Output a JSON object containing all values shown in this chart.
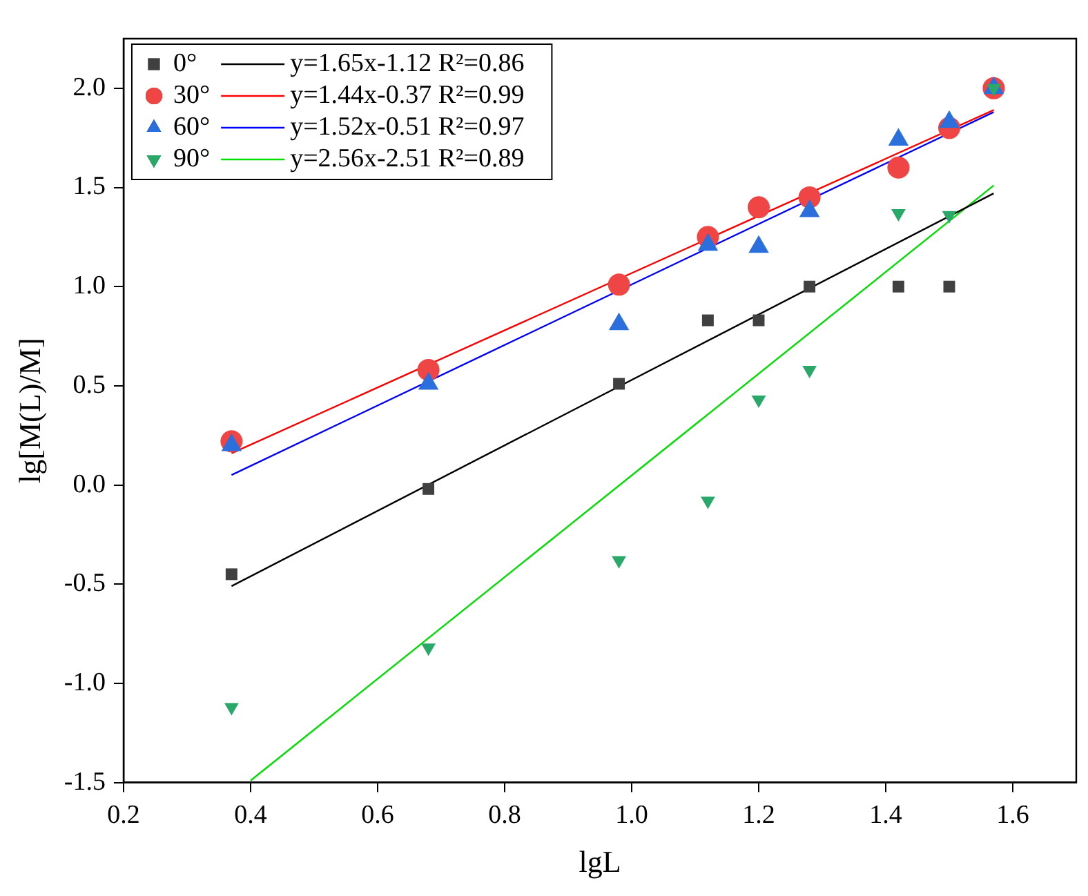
{
  "chart_data": {
    "type": "scatter",
    "xlabel": "lgL",
    "ylabel": "lg[M(L)/M]",
    "xlim": [
      0.2,
      1.7
    ],
    "xticks": [
      0.2,
      0.4,
      0.6,
      0.8,
      {
        "value": 1,
        "label": "1.0"
      },
      1.2,
      1.4,
      1.6
    ],
    "ylim": [
      -1.5,
      2.25
    ],
    "yticks": [
      -1.5,
      {
        "value": -1,
        "label": "-1.0"
      },
      -0.5,
      {
        "value": 0,
        "label": "0.0"
      },
      0.5,
      {
        "value": 1,
        "label": "1.0"
      },
      1.5,
      {
        "value": 2,
        "label": "2.0"
      }
    ],
    "grid": false,
    "legend": "top left",
    "series": [
      {
        "name": "0°",
        "marker": "square",
        "color": "#404040",
        "x": [
          0.37,
          0.68,
          0.98,
          1.12,
          1.2,
          1.28,
          1.42,
          1.5
        ],
        "values": [
          -0.45,
          -0.02,
          0.51,
          0.83,
          0.83,
          1.0,
          1.0,
          1.0
        ]
      },
      {
        "name": "30°",
        "marker": "circle",
        "color": "#f04545",
        "x": [
          0.37,
          0.68,
          0.98,
          1.12,
          1.2,
          1.28,
          1.42,
          1.5,
          1.57
        ],
        "values": [
          0.22,
          0.58,
          1.01,
          1.25,
          1.4,
          1.45,
          1.6,
          1.8,
          2.0
        ]
      },
      {
        "name": "60°",
        "marker": "triangle",
        "color": "#2a6fdb",
        "x": [
          0.37,
          0.68,
          0.98,
          1.12,
          1.2,
          1.28,
          1.42,
          1.5,
          1.57
        ],
        "values": [
          0.2,
          0.51,
          0.81,
          1.21,
          1.2,
          1.38,
          1.74,
          1.83,
          2.0
        ]
      },
      {
        "name": "90°",
        "marker": "triangle-down",
        "color": "#2aa86a",
        "x": [
          0.37,
          0.68,
          0.98,
          1.12,
          1.2,
          1.28,
          1.42,
          1.5,
          1.57
        ],
        "values": [
          -1.12,
          -0.82,
          -0.38,
          -0.08,
          0.43,
          0.58,
          1.37,
          1.36,
          2.0
        ]
      },
      {
        "name": "y=1.65x-1.12 R²=0.86",
        "type": "line",
        "marker": "none",
        "color": "#000000",
        "x": [
          0.37,
          1.57
        ],
        "values": [
          -0.51,
          1.47
        ]
      },
      {
        "name": "y=1.44x-0.37 R²=0.99",
        "type": "line",
        "marker": "none",
        "color": "#ff0000",
        "x": [
          0.37,
          1.57
        ],
        "values": [
          0.16,
          1.89
        ]
      },
      {
        "name": "y=1.52x-0.51 R²=0.97",
        "type": "line",
        "marker": "none",
        "color": "#0000ff",
        "x": [
          0.37,
          1.57
        ],
        "values": [
          0.05,
          1.88
        ]
      },
      {
        "name": "y=2.56x-2.51 R²=0.89",
        "type": "line",
        "marker": "none",
        "color": "#00dd00",
        "x": [
          0.4,
          1.57
        ],
        "values": [
          -1.49,
          1.51
        ]
      }
    ]
  }
}
